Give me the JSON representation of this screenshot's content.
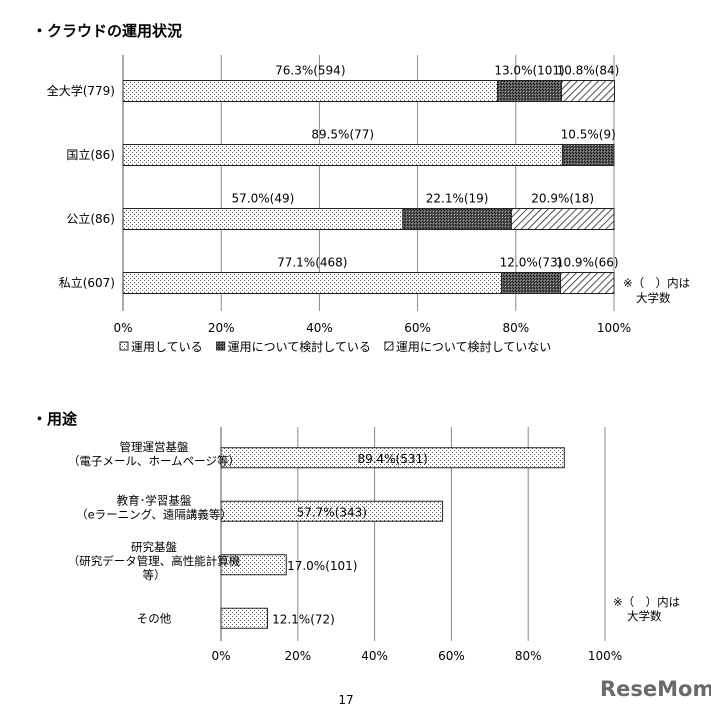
{
  "page_number": "17",
  "brand": "ReseMom",
  "chart_data": [
    {
      "type": "bar",
      "orientation": "horizontal-stacked-percent",
      "title": "・クラウドの運用状況",
      "categories": [
        "全大学(779)",
        "国立(86)",
        "公立(86)",
        "私立(607)"
      ],
      "series": [
        {
          "name": "運用している",
          "values": [
            76.3,
            89.5,
            57.0,
            77.1
          ],
          "labels": [
            "76.3%(594)",
            "89.5%(77)",
            "57.0%(49)",
            "77.1%(468)"
          ]
        },
        {
          "name": "運用について検討している",
          "values": [
            13.0,
            10.5,
            22.1,
            12.0
          ],
          "labels": [
            "13.0%(101)",
            "10.5%(9)",
            "22.1%(19)",
            "12.0%(73)"
          ]
        },
        {
          "name": "運用について検討していない",
          "values": [
            10.8,
            0,
            20.9,
            10.9
          ],
          "labels": [
            "10.8%(84)",
            "",
            "20.9%(18)",
            "10.9%(66)"
          ]
        }
      ],
      "xlim": [
        0,
        100
      ],
      "xticks": [
        "0%",
        "20%",
        "40%",
        "60%",
        "80%",
        "100%"
      ],
      "grid": true,
      "legend_position": "bottom",
      "note": [
        "※（　）内は",
        "大学数"
      ]
    },
    {
      "type": "bar",
      "orientation": "horizontal",
      "title": "・用途",
      "categories": [
        [
          "管理運営基盤",
          "（電子メール、ホームページ等）"
        ],
        [
          "教育･学習基盤",
          "（eラーニング、遠隔講義等）"
        ],
        [
          "研究基盤",
          "（研究データ管理、高性能計算機",
          "等）"
        ],
        [
          "その他"
        ]
      ],
      "values": [
        89.4,
        57.7,
        17.0,
        12.1
      ],
      "labels": [
        "89.4%(531)",
        "57.7%(343)",
        "17.0%(101)",
        "12.1%(72)"
      ],
      "xlim": [
        0,
        100
      ],
      "xticks": [
        "0%",
        "20%",
        "40%",
        "60%",
        "80%",
        "100%"
      ],
      "grid": true,
      "note": [
        "※（　）内は",
        "大学数"
      ]
    }
  ]
}
